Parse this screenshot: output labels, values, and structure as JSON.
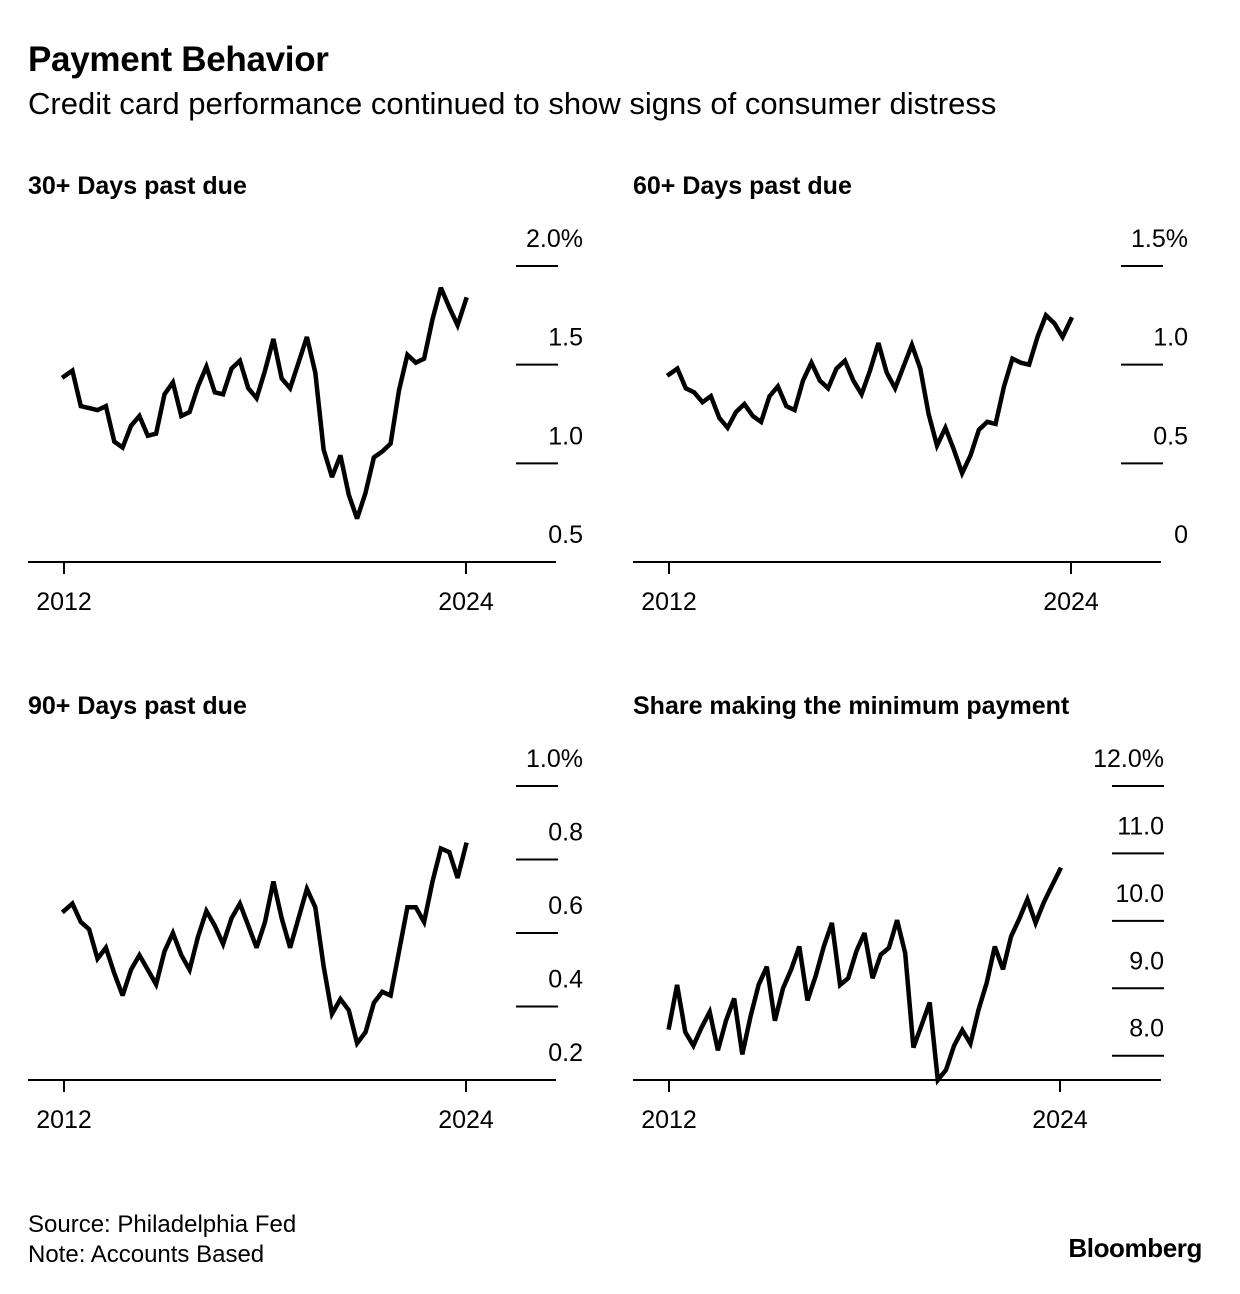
{
  "header": {
    "title": "Payment Behavior",
    "subtitle": "Credit card performance continued to show signs of consumer distress"
  },
  "footer": {
    "source": "Source: Philadelphia Fed",
    "note": "Note: Accounts Based",
    "brand": "Bloomberg"
  },
  "colors": {
    "line": "#000000",
    "background": "#ffffff"
  },
  "chart_data": [
    {
      "type": "line",
      "title": "30+ Days past due",
      "xlabel": "",
      "ylabel": "",
      "xlim": [
        2012.0,
        2024.0
      ],
      "ylim": [
        0.5,
        2.0
      ],
      "yticks": [
        0.5,
        1.0,
        1.5,
        2.0
      ],
      "ytick_labels": [
        "0.5",
        "1.0",
        "1.5",
        "2.0%"
      ],
      "xticks": [
        2012,
        2024
      ],
      "xtick_labels": [
        "2012",
        "2024"
      ],
      "grid": false,
      "x": [
        2012.0,
        2012.25,
        2012.5,
        2012.75,
        2013.0,
        2013.25,
        2013.5,
        2013.75,
        2014.0,
        2014.25,
        2014.5,
        2014.75,
        2015.0,
        2015.25,
        2015.5,
        2015.75,
        2016.0,
        2016.25,
        2016.5,
        2016.75,
        2017.0,
        2017.25,
        2017.5,
        2017.75,
        2018.0,
        2018.25,
        2018.5,
        2018.75,
        2019.0,
        2019.25,
        2019.5,
        2019.75,
        2020.0,
        2020.25,
        2020.5,
        2020.75,
        2021.0,
        2021.25,
        2021.5,
        2021.75,
        2022.0,
        2022.25,
        2022.5,
        2022.75,
        2023.0,
        2023.25,
        2023.5,
        2023.75,
        2024.0
      ],
      "series": [
        {
          "name": "30+ Days past due",
          "values": [
            1.44,
            1.47,
            1.29,
            1.28,
            1.27,
            1.29,
            1.11,
            1.08,
            1.19,
            1.24,
            1.14,
            1.15,
            1.35,
            1.41,
            1.24,
            1.26,
            1.39,
            1.49,
            1.36,
            1.35,
            1.48,
            1.52,
            1.38,
            1.33,
            1.47,
            1.63,
            1.43,
            1.38,
            1.51,
            1.64,
            1.46,
            1.07,
            0.93,
            1.04,
            0.84,
            0.72,
            0.85,
            1.03,
            1.06,
            1.1,
            1.37,
            1.55,
            1.51,
            1.53,
            1.73,
            1.89,
            1.79,
            1.7,
            1.83
          ]
        }
      ]
    },
    {
      "type": "line",
      "title": "60+ Days past due",
      "xlabel": "",
      "ylabel": "",
      "xlim": [
        2012.0,
        2024.0
      ],
      "ylim": [
        0.0,
        1.5
      ],
      "yticks": [
        0.0,
        0.5,
        1.0,
        1.5
      ],
      "ytick_labels": [
        "0",
        "0.5",
        "1.0",
        "1.5%"
      ],
      "xticks": [
        2012,
        2024
      ],
      "xtick_labels": [
        "2012",
        "2024"
      ],
      "grid": false,
      "x": [
        2012.0,
        2012.25,
        2012.5,
        2012.75,
        2013.0,
        2013.25,
        2013.5,
        2013.75,
        2014.0,
        2014.25,
        2014.5,
        2014.75,
        2015.0,
        2015.25,
        2015.5,
        2015.75,
        2016.0,
        2016.25,
        2016.5,
        2016.75,
        2017.0,
        2017.25,
        2017.5,
        2017.75,
        2018.0,
        2018.25,
        2018.5,
        2018.75,
        2019.0,
        2019.25,
        2019.5,
        2019.75,
        2020.0,
        2020.25,
        2020.5,
        2020.75,
        2021.0,
        2021.25,
        2021.5,
        2021.75,
        2022.0,
        2022.25,
        2022.5,
        2022.75,
        2023.0,
        2023.25,
        2023.5,
        2023.75,
        2024.0
      ],
      "series": [
        {
          "name": "60+ Days past due",
          "values": [
            0.95,
            0.98,
            0.88,
            0.86,
            0.81,
            0.84,
            0.73,
            0.68,
            0.76,
            0.8,
            0.74,
            0.71,
            0.84,
            0.89,
            0.79,
            0.77,
            0.92,
            1.01,
            0.92,
            0.88,
            0.98,
            1.02,
            0.92,
            0.85,
            0.97,
            1.11,
            0.96,
            0.88,
            0.99,
            1.1,
            0.98,
            0.75,
            0.59,
            0.68,
            0.57,
            0.45,
            0.54,
            0.67,
            0.71,
            0.7,
            0.89,
            1.03,
            1.01,
            1.0,
            1.14,
            1.25,
            1.21,
            1.14,
            1.23
          ]
        }
      ]
    },
    {
      "type": "line",
      "title": "90+ Days past due",
      "xlabel": "",
      "ylabel": "",
      "xlim": [
        2012.0,
        2024.0
      ],
      "ylim": [
        0.2,
        1.0
      ],
      "yticks": [
        0.2,
        0.4,
        0.6,
        0.8,
        1.0
      ],
      "ytick_labels": [
        "0.2",
        "0.4",
        "0.6",
        "0.8",
        "1.0%"
      ],
      "xticks": [
        2012,
        2024
      ],
      "xtick_labels": [
        "2012",
        "2024"
      ],
      "grid": false,
      "x": [
        2012.0,
        2012.25,
        2012.5,
        2012.75,
        2013.0,
        2013.25,
        2013.5,
        2013.75,
        2014.0,
        2014.25,
        2014.5,
        2014.75,
        2015.0,
        2015.25,
        2015.5,
        2015.75,
        2016.0,
        2016.25,
        2016.5,
        2016.75,
        2017.0,
        2017.25,
        2017.5,
        2017.75,
        2018.0,
        2018.25,
        2018.5,
        2018.75,
        2019.0,
        2019.25,
        2019.5,
        2019.75,
        2020.0,
        2020.25,
        2020.5,
        2020.75,
        2021.0,
        2021.25,
        2021.5,
        2021.75,
        2022.0,
        2022.25,
        2022.5,
        2022.75,
        2023.0,
        2023.25,
        2023.5,
        2023.75,
        2024.0
      ],
      "series": [
        {
          "name": "90+ Days past due",
          "values": [
            0.66,
            0.68,
            0.63,
            0.61,
            0.53,
            0.56,
            0.49,
            0.43,
            0.5,
            0.54,
            0.5,
            0.46,
            0.55,
            0.6,
            0.54,
            0.5,
            0.59,
            0.66,
            0.62,
            0.57,
            0.64,
            0.68,
            0.62,
            0.56,
            0.63,
            0.74,
            0.64,
            0.56,
            0.64,
            0.72,
            0.67,
            0.51,
            0.38,
            0.42,
            0.39,
            0.3,
            0.33,
            0.41,
            0.44,
            0.43,
            0.55,
            0.67,
            0.67,
            0.63,
            0.74,
            0.83,
            0.82,
            0.75,
            0.84
          ]
        }
      ]
    },
    {
      "type": "line",
      "title": "Share making the minimum payment",
      "xlabel": "",
      "ylabel": "",
      "xlim": [
        2012.0,
        2024.0
      ],
      "ylim": [
        7.64,
        12.0
      ],
      "yticks": [
        8.0,
        9.0,
        10.0,
        11.0,
        12.0
      ],
      "ytick_labels": [
        "8.0",
        "9.0",
        "10.0",
        "11.0",
        "12.0%"
      ],
      "xticks": [
        2012,
        2024
      ],
      "xtick_labels": [
        "2012",
        "2024"
      ],
      "grid": false,
      "x": [
        2012.0,
        2012.25,
        2012.5,
        2012.75,
        2013.0,
        2013.25,
        2013.5,
        2013.75,
        2014.0,
        2014.25,
        2014.5,
        2014.75,
        2015.0,
        2015.25,
        2015.5,
        2015.75,
        2016.0,
        2016.25,
        2016.5,
        2016.75,
        2017.0,
        2017.25,
        2017.5,
        2017.75,
        2018.0,
        2018.25,
        2018.5,
        2018.75,
        2019.0,
        2019.25,
        2019.5,
        2019.75,
        2020.0,
        2020.25,
        2020.5,
        2020.75,
        2021.0,
        2021.25,
        2021.5,
        2021.75,
        2022.0,
        2022.25,
        2022.5,
        2022.75,
        2023.0,
        2023.25,
        2023.5,
        2023.75,
        2024.0
      ],
      "series": [
        {
          "name": "Share making the minimum payment",
          "values": [
            8.42,
            9.05,
            8.35,
            8.15,
            8.42,
            8.65,
            8.08,
            8.52,
            8.85,
            8.02,
            8.58,
            9.05,
            9.32,
            8.52,
            9.0,
            9.28,
            9.62,
            8.82,
            9.18,
            9.62,
            9.97,
            9.05,
            9.15,
            9.55,
            9.82,
            9.15,
            9.5,
            9.6,
            10.01,
            9.52,
            8.12,
            8.45,
            8.79,
            7.64,
            7.79,
            8.15,
            8.38,
            8.18,
            8.68,
            9.08,
            9.62,
            9.28,
            9.77,
            10.03,
            10.32,
            9.97,
            10.27,
            10.52,
            10.76
          ]
        }
      ]
    }
  ]
}
